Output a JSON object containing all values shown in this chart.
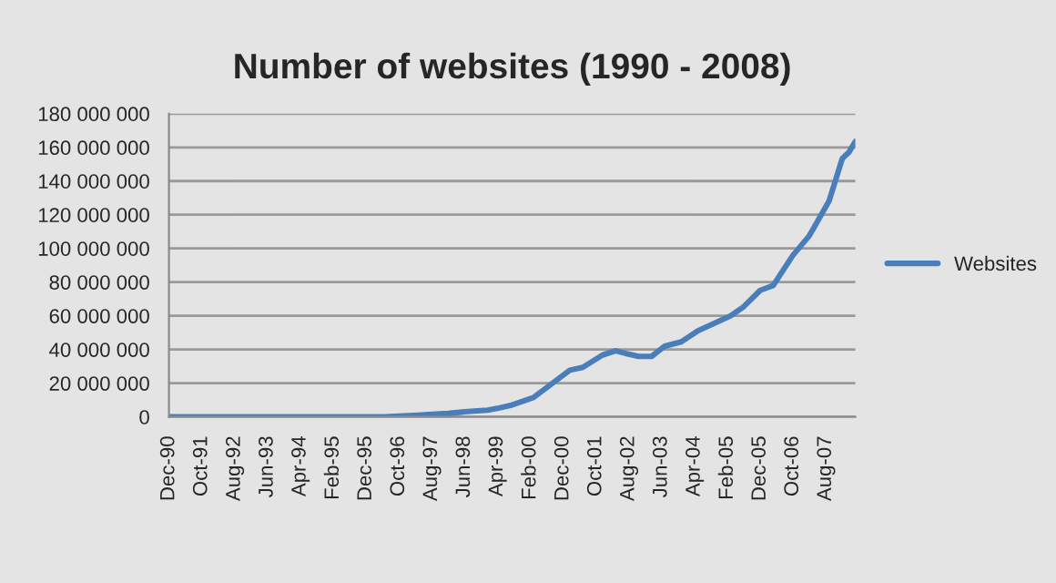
{
  "chart_data": {
    "type": "line",
    "title": "Number of websites (1990 - 2008)",
    "x": [
      "1990-12",
      "1992-06",
      "1993-06",
      "1994-06",
      "1995-06",
      "1996-06",
      "1996-10",
      "1997-04",
      "1997-08",
      "1998-01",
      "1998-06",
      "1999-01",
      "1999-04",
      "1999-08",
      "2000-03",
      "2001-02",
      "2001-06",
      "2001-12",
      "2002-04",
      "2002-07",
      "2002-11",
      "2003-03",
      "2003-07",
      "2003-12",
      "2004-05",
      "2005-03",
      "2005-07",
      "2005-12",
      "2006-04",
      "2006-10",
      "2007-03",
      "2007-09",
      "2008-01",
      "2008-03",
      "2008-05"
    ],
    "series": [
      {
        "name": "Websites",
        "color": "#4a7ebb",
        "values": [
          0,
          0,
          0,
          0,
          0,
          0,
          500000,
          1000000,
          1500000,
          2000000,
          3000000,
          4000000,
          5000000,
          6800000,
          11500000,
          27700000,
          29400000,
          36700000,
          39200000,
          37700000,
          35900000,
          35900000,
          42000000,
          44500000,
          51000000,
          60000000,
          65400000,
          75100000,
          78000000,
          96000000,
          107500000,
          128300000,
          153400000,
          157000000,
          163500000
        ]
      }
    ],
    "xlim": [
      "1990-12",
      "2008-05"
    ],
    "xticks": [
      {
        "value": "1990-12",
        "label": "Dec-90"
      },
      {
        "value": "1991-10",
        "label": "Oct-91"
      },
      {
        "value": "1992-08",
        "label": "Aug-92"
      },
      {
        "value": "1993-06",
        "label": "Jun-93"
      },
      {
        "value": "1994-04",
        "label": "Apr-94"
      },
      {
        "value": "1995-02",
        "label": "Feb-95"
      },
      {
        "value": "1995-12",
        "label": "Dec-95"
      },
      {
        "value": "1996-10",
        "label": "Oct-96"
      },
      {
        "value": "1997-08",
        "label": "Aug-97"
      },
      {
        "value": "1998-06",
        "label": "Jun-98"
      },
      {
        "value": "1999-04",
        "label": "Apr-99"
      },
      {
        "value": "2000-02",
        "label": "Feb-00"
      },
      {
        "value": "2000-12",
        "label": "Dec-00"
      },
      {
        "value": "2001-10",
        "label": "Oct-01"
      },
      {
        "value": "2002-08",
        "label": "Aug-02"
      },
      {
        "value": "2003-06",
        "label": "Jun-03"
      },
      {
        "value": "2004-04",
        "label": "Apr-04"
      },
      {
        "value": "2005-02",
        "label": "Feb-05"
      },
      {
        "value": "2005-12",
        "label": "Dec-05"
      },
      {
        "value": "2006-10",
        "label": "Oct-06"
      },
      {
        "value": "2007-08",
        "label": "Aug-07"
      }
    ],
    "ylim": [
      0,
      180000000
    ],
    "yticks": [
      0,
      {
        "value": 20000000,
        "label": "20 000 000"
      },
      {
        "value": 40000000,
        "label": "40 000 000"
      },
      {
        "value": 60000000,
        "label": "60 000 000"
      },
      {
        "value": 80000000,
        "label": "80 000 000"
      },
      {
        "value": 100000000,
        "label": "100 000 000"
      },
      {
        "value": 120000000,
        "label": "120 000 000"
      },
      {
        "value": 140000000,
        "label": "140 000 000"
      },
      {
        "value": 160000000,
        "label": "160 000 000"
      },
      {
        "value": 180000000,
        "label": "180 000 000"
      }
    ],
    "grid": "y",
    "legend": "right",
    "marker": "none",
    "line_style": "solid"
  }
}
